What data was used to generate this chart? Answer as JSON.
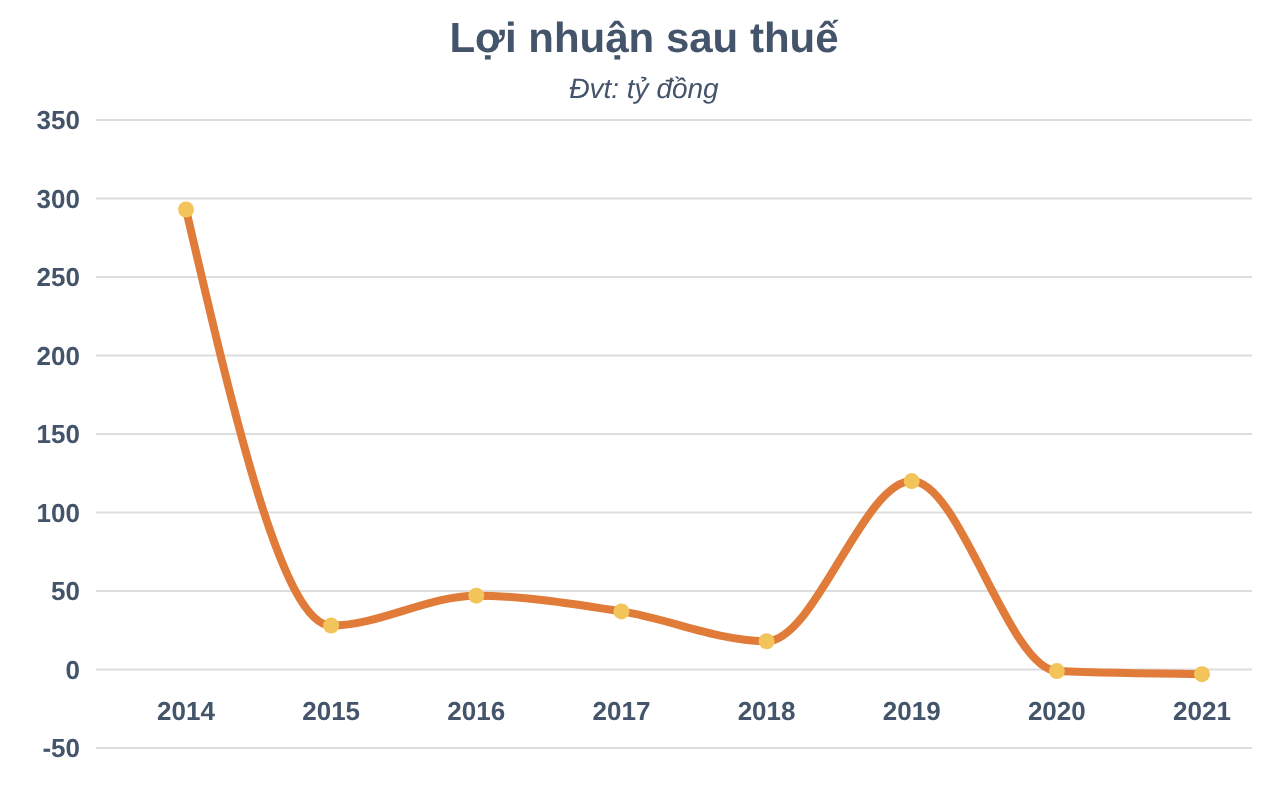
{
  "chart_data": {
    "type": "line",
    "title": "Lợi nhuận sau thuế",
    "subtitle": "Đvt: tỷ đồng",
    "categories": [
      "2014",
      "2015",
      "2016",
      "2017",
      "2018",
      "2019",
      "2020",
      "2021"
    ],
    "series": [
      {
        "color": "#e07b39",
        "values": [
          293,
          28,
          47,
          37,
          18,
          120,
          -1,
          -3
        ]
      }
    ],
    "ylim": [
      -50,
      350
    ],
    "yticks": [
      -50,
      0,
      50,
      100,
      150,
      200,
      250,
      300,
      350
    ],
    "grid": "y",
    "marker": "circle",
    "line_style": "solid"
  }
}
